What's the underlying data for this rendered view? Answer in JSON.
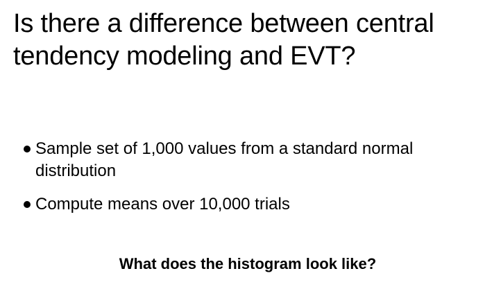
{
  "slide": {
    "title": "Is there a difference between central tendency modeling and EVT?",
    "bullets": [
      {
        "text": "Sample set of 1,000 values from a standard normal distribution"
      },
      {
        "text": "Compute means over 10,000 trials"
      }
    ],
    "question": "What does the histogram look like?"
  }
}
